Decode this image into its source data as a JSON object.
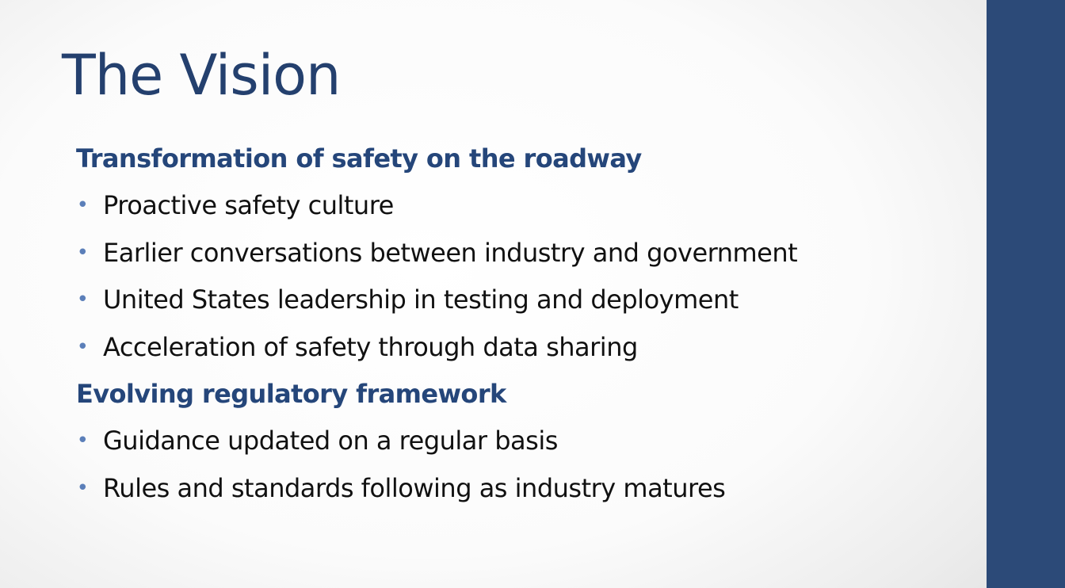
{
  "slide": {
    "title": "The Vision",
    "accent_color": "#2c4a78",
    "sections": [
      {
        "heading": "Transformation of safety on the roadway",
        "bullets": [
          "Proactive safety culture",
          "Earlier conversations between industry and government",
          "United States leadership in testing and deployment",
          "Acceleration of safety through data sharing"
        ]
      },
      {
        "heading": "Evolving regulatory framework",
        "bullets": [
          "Guidance updated on a regular basis",
          "Rules and standards following as industry matures"
        ]
      }
    ],
    "bullet_glyph": "•"
  }
}
